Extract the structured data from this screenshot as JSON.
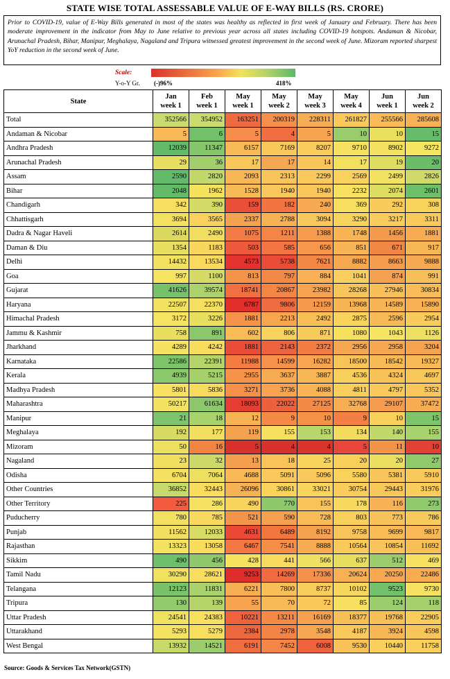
{
  "title": "STATE WISE TOTAL ASSESSABLE VALUE OF E-WAY BILLS (RS. CRORE)",
  "note": "Prior to COVID-19, value of E-Way Bills generated in most of the states was healthy as reflected in first week of January and February. There has been moderate improvement in the indicator from May to June relative to previous year across all states including COVID-19 hotspots. Andaman & Nicobar, Arunachal Pradesh, Bihar, Manipur, Meghalaya, Nagaland and Tripura witnessed greatest improvement in the second week of June. Mizoram reported sharpest YoY reduction in the second week of June.",
  "scale": {
    "label": "Scale:",
    "yoy_label": "Y-o-Y Gr.",
    "min": "(-)96%",
    "max": "418%",
    "colors": [
      "#d9322b",
      "#f8a24d",
      "#f2e15a",
      "#b5d36a",
      "#5cb869"
    ]
  },
  "table": {
    "state_header": "State",
    "columns": [
      {
        "line1": "Jan",
        "line2": "week 1"
      },
      {
        "line1": "Feb",
        "line2": "week 1"
      },
      {
        "line1": "May",
        "line2": "week 1"
      },
      {
        "line1": "May",
        "line2": "week 2"
      },
      {
        "line1": "May",
        "line2": "week 3"
      },
      {
        "line1": "May",
        "line2": "week 4"
      },
      {
        "line1": "Jun",
        "line2": "week 1"
      },
      {
        "line1": "Jun",
        "line2": "week 2"
      }
    ],
    "rows": [
      {
        "state": "Total",
        "values": [
          "352566",
          "354952",
          "163251",
          "200319",
          "228311",
          "261827",
          "255566",
          "285608"
        ],
        "colors": [
          "#cbdc6f",
          "#cbdc6f",
          "#f06a3f",
          "#f58f4a",
          "#f7ad52",
          "#f9c95a",
          "#f8bb56",
          "#f8b154"
        ]
      },
      {
        "state": "Andaman & Nicobar",
        "values": [
          "5",
          "6",
          "5",
          "4",
          "5",
          "10",
          "10",
          "15"
        ],
        "colors": [
          "#f8b857",
          "#72c06a",
          "#f58c4a",
          "#f26e40",
          "#f6a450",
          "#98cc6c",
          "#eae05e",
          "#66bc6a"
        ]
      },
      {
        "state": "Andhra Pradesh",
        "values": [
          "12039",
          "11347",
          "6157",
          "7169",
          "8207",
          "9710",
          "8902",
          "9272"
        ],
        "colors": [
          "#63bb6a",
          "#86c66b",
          "#f8b855",
          "#f9c85b",
          "#f9cc5c",
          "#f7e160",
          "#f3e05f",
          "#f5e460"
        ]
      },
      {
        "state": "Arunachal Pradesh",
        "values": [
          "29",
          "36",
          "17",
          "17",
          "14",
          "17",
          "19",
          "20"
        ],
        "colors": [
          "#e7df5f",
          "#a0cf6c",
          "#f9c65a",
          "#f6a752",
          "#f9c45a",
          "#f1e15f",
          "#dfdd5f",
          "#6bbd6a"
        ]
      },
      {
        "state": "Assam",
        "values": [
          "2590",
          "2820",
          "2093",
          "2313",
          "2299",
          "2569",
          "2499",
          "2826"
        ],
        "colors": [
          "#63bb6a",
          "#c3d86b",
          "#f8b654",
          "#f9c45a",
          "#f9ca5b",
          "#fad15c",
          "#f3e160",
          "#cfda68"
        ]
      },
      {
        "state": "Bihar",
        "values": [
          "2048",
          "1962",
          "1528",
          "1940",
          "1940",
          "2232",
          "2074",
          "2601"
        ],
        "colors": [
          "#63bb6a",
          "#f4e25f",
          "#f8ba56",
          "#f9c75b",
          "#f9c65a",
          "#f8e160",
          "#dcdc60",
          "#6ebf6a"
        ]
      },
      {
        "state": "Chandigarh",
        "values": [
          "342",
          "390",
          "159",
          "182",
          "240",
          "369",
          "292",
          "308"
        ],
        "colors": [
          "#f5de60",
          "#d4db66",
          "#ea4f38",
          "#f17442",
          "#f7aa52",
          "#f8de5f",
          "#f8cb5b",
          "#f8d35c"
        ]
      },
      {
        "state": "Chhattisgarh",
        "values": [
          "3694",
          "3565",
          "2337",
          "2788",
          "3094",
          "3290",
          "3217",
          "3311"
        ],
        "colors": [
          "#f3e05f",
          "#f8d25c",
          "#f5a250",
          "#f7b254",
          "#f9c85b",
          "#f8d45c",
          "#f9cd5c",
          "#f9c95b"
        ]
      },
      {
        "state": "Dadra & Nagar Haveli",
        "values": [
          "2614",
          "2490",
          "1075",
          "1211",
          "1388",
          "1748",
          "1456",
          "1881"
        ],
        "colors": [
          "#ddd95f",
          "#f1dd5f",
          "#f27a44",
          "#f58546",
          "#f69a4d",
          "#f8b455",
          "#f49a4c",
          "#f7ab52"
        ]
      },
      {
        "state": "Daman & Diu",
        "values": [
          "1354",
          "1183",
          "503",
          "585",
          "656",
          "851",
          "671",
          "917"
        ],
        "colors": [
          "#e8de60",
          "#f9d75e",
          "#ec5a3b",
          "#f27543",
          "#f6974c",
          "#f8b455",
          "#f28643",
          "#f8b755"
        ]
      },
      {
        "state": "Delhi",
        "values": [
          "14432",
          "13534",
          "4573",
          "5738",
          "7621",
          "8882",
          "8663",
          "9888"
        ],
        "colors": [
          "#f3e260",
          "#f9d95e",
          "#e4322e",
          "#ea4d37",
          "#f38745",
          "#f7a851",
          "#f59c4e",
          "#f6aa52"
        ]
      },
      {
        "state": "Goa",
        "values": [
          "997",
          "1100",
          "813",
          "797",
          "884",
          "1041",
          "874",
          "991"
        ],
        "colors": [
          "#f6e460",
          "#d5db65",
          "#f59448",
          "#f48945",
          "#f8b255",
          "#f9ce5c",
          "#f6a150",
          "#f8be57"
        ]
      },
      {
        "state": "Gujarat",
        "values": [
          "41626",
          "39574",
          "18741",
          "20867",
          "23982",
          "28268",
          "27946",
          "30834"
        ],
        "colors": [
          "#76c16a",
          "#acd26b",
          "#f16f41",
          "#f48645",
          "#f7a451",
          "#f8c55a",
          "#f8c059",
          "#f8bd58"
        ]
      },
      {
        "state": "Haryana",
        "values": [
          "22507",
          "22370",
          "6787",
          "9806",
          "12159",
          "13968",
          "14589",
          "15890"
        ],
        "colors": [
          "#f0e15f",
          "#f5df60",
          "#e22f2c",
          "#ef6c40",
          "#f59a4d",
          "#f8b555",
          "#f8b354",
          "#f7b153"
        ]
      },
      {
        "state": "Himachal Pradesh",
        "values": [
          "3172",
          "3226",
          "1881",
          "2213",
          "2492",
          "2875",
          "2596",
          "2954"
        ],
        "colors": [
          "#f5e460",
          "#e8df5f",
          "#f59348",
          "#f7a650",
          "#f8bf57",
          "#f9d35c",
          "#f8ba56",
          "#f9cb5b"
        ]
      },
      {
        "state": "Jammu & Kashmir",
        "values": [
          "758",
          "891",
          "602",
          "806",
          "871",
          "1080",
          "1043",
          "1126"
        ],
        "colors": [
          "#e9df5f",
          "#8bc76b",
          "#f8bb56",
          "#f8d25c",
          "#f8cc5b",
          "#f8e05f",
          "#f7e460",
          "#eddf5f"
        ]
      },
      {
        "state": "Jharkhand",
        "values": [
          "4289",
          "4242",
          "1881",
          "2143",
          "2372",
          "2956",
          "2958",
          "3204"
        ],
        "colors": [
          "#f4e260",
          "#f8dc5e",
          "#ea4d37",
          "#ee623d",
          "#f27c43",
          "#f6a550",
          "#f7a651",
          "#f6a34f"
        ]
      },
      {
        "state": "Karnataka",
        "values": [
          "22586",
          "22391",
          "11988",
          "14599",
          "16282",
          "18500",
          "18542",
          "19327"
        ],
        "colors": [
          "#7dc46b",
          "#b5d56a",
          "#f47b42",
          "#f6924a",
          "#f7a551",
          "#f8c359",
          "#f8ba56",
          "#f8ba56"
        ]
      },
      {
        "state": "Kerala",
        "values": [
          "4939",
          "5215",
          "2955",
          "3637",
          "3887",
          "4536",
          "4324",
          "4697"
        ],
        "colors": [
          "#8bc86b",
          "#a5d06b",
          "#f59448",
          "#f7ab53",
          "#f8b755",
          "#f9cf5c",
          "#f8c259",
          "#f8c75a"
        ]
      },
      {
        "state": "Madhya Pradesh",
        "values": [
          "5801",
          "5836",
          "3271",
          "3736",
          "4088",
          "4811",
          "4797",
          "5352"
        ],
        "colors": [
          "#f9e05f",
          "#f8db5d",
          "#f68f48",
          "#f7a350",
          "#f8b455",
          "#f9ce5b",
          "#f9c95b",
          "#f8c65a"
        ]
      },
      {
        "state": "Maharashtra",
        "values": [
          "50217",
          "61634",
          "18093",
          "22022",
          "27125",
          "32768",
          "29107",
          "37472"
        ],
        "colors": [
          "#f3e260",
          "#8cc76b",
          "#e63d32",
          "#ee5f3c",
          "#f48a46",
          "#f7ae53",
          "#f59b4e",
          "#f7ac52"
        ]
      },
      {
        "state": "Manipur",
        "values": [
          "21",
          "18",
          "12",
          "9",
          "10",
          "9",
          "10",
          "15"
        ],
        "colors": [
          "#7cc36b",
          "#a8d26c",
          "#f7b254",
          "#f48a46",
          "#f49347",
          "#f47f44",
          "#f9cf5c",
          "#7fc36b"
        ]
      },
      {
        "state": "Meghalaya",
        "values": [
          "192",
          "177",
          "119",
          "155",
          "153",
          "134",
          "140",
          "155"
        ],
        "colors": [
          "#d6db63",
          "#f3df5f",
          "#f5a24f",
          "#f7e060",
          "#b8d66b",
          "#f4da5d",
          "#c1d86a",
          "#a8d26c"
        ]
      },
      {
        "state": "Mizoram",
        "values": [
          "50",
          "16",
          "5",
          "4",
          "4",
          "5",
          "11",
          "10"
        ],
        "colors": [
          "#eee05f",
          "#f08542",
          "#d7322b",
          "#d7322b",
          "#d8342b",
          "#e8463a",
          "#f29447",
          "#e24232"
        ]
      },
      {
        "state": "Nagaland",
        "values": [
          "23",
          "32",
          "13",
          "18",
          "25",
          "20",
          "20",
          "27"
        ],
        "colors": [
          "#f1e05f",
          "#ccd968",
          "#f5a04f",
          "#f8c358",
          "#f8d45c",
          "#f9cf5c",
          "#eadf60",
          "#8fc96b"
        ]
      },
      {
        "state": "Odisha",
        "values": [
          "6704",
          "7064",
          "4688",
          "5091",
          "5096",
          "5580",
          "5381",
          "5910"
        ],
        "colors": [
          "#f4e160",
          "#ede060",
          "#f9b956",
          "#f9c95b",
          "#f9c95b",
          "#f9d25c",
          "#f8c55a",
          "#f9ca5b"
        ]
      },
      {
        "state": "Other Countries",
        "values": [
          "36852",
          "32443",
          "26096",
          "30861",
          "33021",
          "30754",
          "29443",
          "31976"
        ],
        "colors": [
          "#c7d96a",
          "#f8dc5e",
          "#f7b253",
          "#f9d35c",
          "#f9d55d",
          "#f9cc5b",
          "#f8c75a",
          "#f9cd5b"
        ]
      },
      {
        "state": "Other Territory",
        "values": [
          "225",
          "286",
          "490",
          "770",
          "155",
          "178",
          "116",
          "273"
        ],
        "colors": [
          "#f25b3d",
          "#f6e260",
          "#fad35d",
          "#8dc86b",
          "#f9c35a",
          "#f8d95e",
          "#f8b154",
          "#8fc96b"
        ]
      },
      {
        "state": "Puducherry",
        "values": [
          "780",
          "785",
          "521",
          "590",
          "728",
          "803",
          "773",
          "786"
        ],
        "colors": [
          "#f2e160",
          "#f9d85e",
          "#f4964a",
          "#f6a150",
          "#f8bb56",
          "#f9cf5c",
          "#f8c25a",
          "#f8c95b"
        ]
      },
      {
        "state": "Punjab",
        "values": [
          "11562",
          "12033",
          "4631",
          "6489",
          "8192",
          "9758",
          "9699",
          "9817"
        ],
        "colors": [
          "#f3df5f",
          "#d8dc64",
          "#eb4935",
          "#f3763f",
          "#f6a150",
          "#f8c358",
          "#f8bb56",
          "#f7b855"
        ]
      },
      {
        "state": "Rajasthan",
        "values": [
          "13323",
          "13058",
          "6467",
          "7541",
          "8888",
          "10564",
          "10854",
          "11692"
        ],
        "colors": [
          "#f3e160",
          "#f8dc5e",
          "#f27742",
          "#f58e47",
          "#f8ac52",
          "#f9c95a",
          "#f8c35a",
          "#f8bf57"
        ]
      },
      {
        "state": "Sikkim",
        "values": [
          "490",
          "456",
          "428",
          "441",
          "566",
          "637",
          "512",
          "469"
        ],
        "colors": [
          "#6dbf6a",
          "#8ec86b",
          "#f5e360",
          "#f8da5f",
          "#eee060",
          "#e7dd5f",
          "#9acc6c",
          "#f6e260"
        ]
      },
      {
        "state": "Tamil Nadu",
        "values": [
          "30290",
          "28621",
          "9253",
          "14269",
          "17336",
          "20624",
          "20250",
          "22486"
        ],
        "colors": [
          "#f0e15f",
          "#f8de5e",
          "#de2d2a",
          "#f06b3f",
          "#f4914a",
          "#f8b054",
          "#f8a852",
          "#f8ac52"
        ]
      },
      {
        "state": "Telangana",
        "values": [
          "12123",
          "11831",
          "6221",
          "7800",
          "8737",
          "10102",
          "9523",
          "9730"
        ],
        "colors": [
          "#7ac26a",
          "#aad26c",
          "#f7ae53",
          "#f8c057",
          "#f9cd5b",
          "#f8d75e",
          "#74c16b",
          "#f6e260"
        ]
      },
      {
        "state": "Tripura",
        "values": [
          "130",
          "139",
          "55",
          "70",
          "72",
          "85",
          "124",
          "118"
        ],
        "colors": [
          "#93ca6b",
          "#b5d56a",
          "#f6a450",
          "#f8ba56",
          "#f9c75a",
          "#f7df5f",
          "#9bcd6c",
          "#a5d06b"
        ]
      },
      {
        "state": "Uttar Pradesh",
        "values": [
          "24541",
          "24383",
          "10221",
          "13211",
          "16169",
          "18377",
          "19768",
          "22905"
        ],
        "colors": [
          "#f0e15f",
          "#f7e060",
          "#ee623d",
          "#f48a46",
          "#f6a150",
          "#f8bf57",
          "#f8c058",
          "#f9cc5c"
        ]
      },
      {
        "state": "Uttarakhand",
        "values": [
          "5293",
          "5279",
          "2384",
          "2978",
          "3548",
          "4187",
          "3924",
          "4598"
        ],
        "colors": [
          "#f4e360",
          "#f7de5f",
          "#ef673f",
          "#f48445",
          "#f7a751",
          "#f9c95b",
          "#f8b755",
          "#f8c55a"
        ]
      },
      {
        "state": "West Bengal",
        "values": [
          "13932",
          "14521",
          "6191",
          "7452",
          "6008",
          "9530",
          "10440",
          "11758"
        ],
        "colors": [
          "#c9d969",
          "#9ccd6c",
          "#f06d40",
          "#f48747",
          "#ee623d",
          "#f8c258",
          "#f9d05c",
          "#f9d05c"
        ]
      }
    ]
  },
  "source": "Source: Goods & Services Tax Network(GSTN)"
}
